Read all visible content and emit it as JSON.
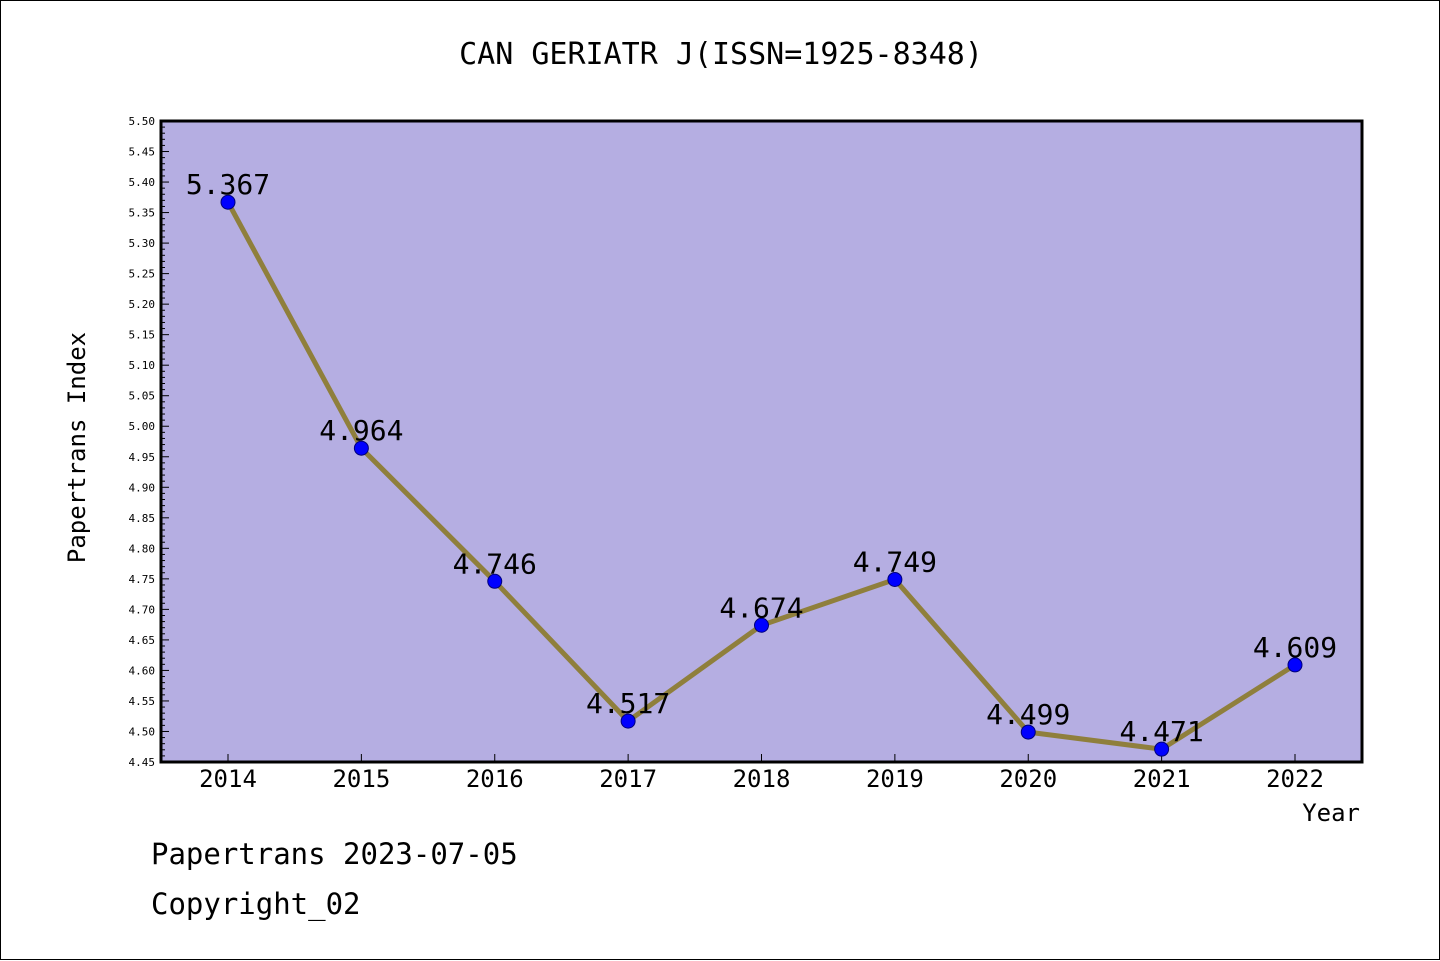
{
  "chart_data": {
    "type": "line",
    "title": "CAN GERIATR J(ISSN=1925-8348)",
    "xlabel": "Year",
    "ylabel": "Papertrans Index",
    "categories": [
      "2014",
      "2015",
      "2016",
      "2017",
      "2018",
      "2019",
      "2020",
      "2021",
      "2022"
    ],
    "series": [
      {
        "values": [
          5.367,
          4.964,
          4.746,
          4.517,
          4.674,
          4.749,
          4.499,
          4.471,
          4.609
        ]
      }
    ],
    "data_labels": [
      "5.367",
      "4.964",
      "4.746",
      "4.517",
      "4.674",
      "4.749",
      "4.499",
      "4.471",
      "4.609"
    ],
    "ylim": [
      4.45,
      5.5
    ],
    "y_ticks": [
      "4.45",
      "4.50",
      "4.55",
      "4.60",
      "4.65",
      "4.70",
      "4.75",
      "4.80",
      "4.85",
      "4.90",
      "4.95",
      "5.00",
      "5.05",
      "5.10",
      "5.15",
      "5.20",
      "5.25",
      "5.30",
      "5.35",
      "5.40",
      "5.45",
      "5.50"
    ],
    "grid": false,
    "legend": "none",
    "colors": {
      "plot_background": "#b5aee2",
      "line": "#8f7f3c",
      "marker": "#0000ff",
      "axis": "#000000"
    }
  },
  "footer": {
    "line1": "Papertrans 2023-07-05",
    "line2": "Copyright_02"
  }
}
